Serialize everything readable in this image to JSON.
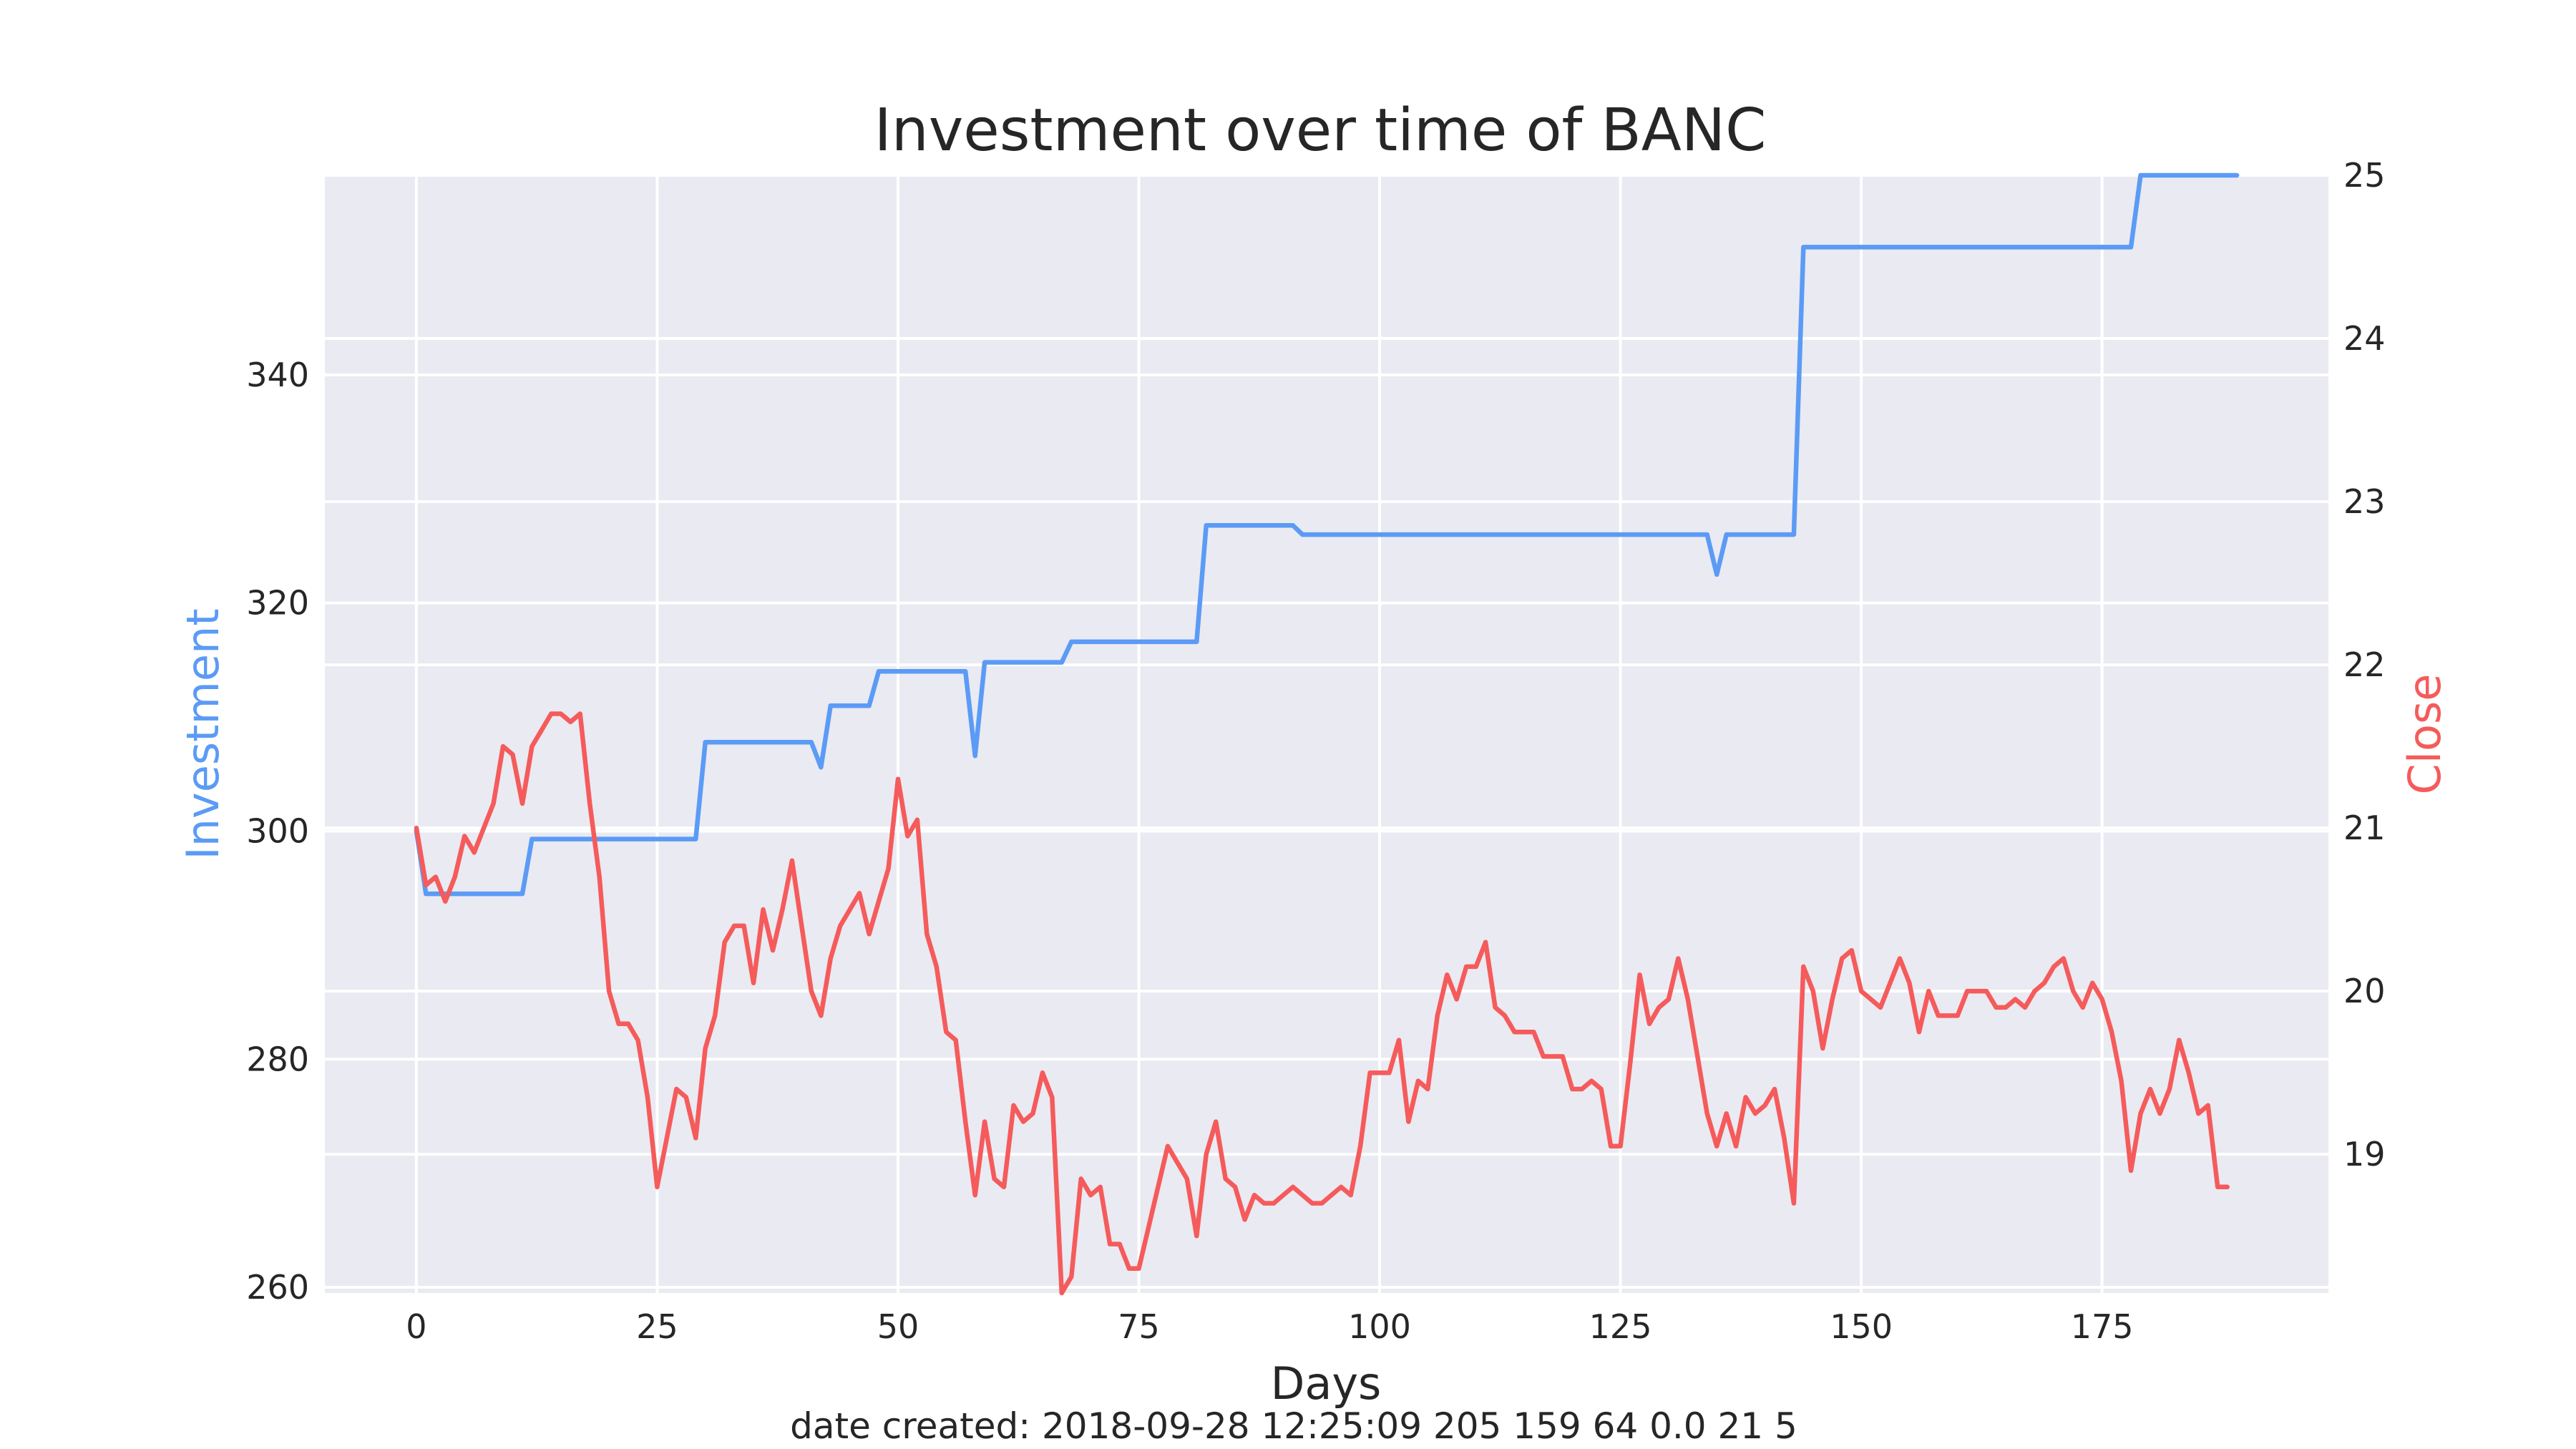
{
  "chart_data": {
    "type": "line",
    "title": "Investment over time of BANC",
    "xlabel": "Days",
    "ylabel_left": "Investment",
    "ylabel_right": "Close",
    "footer": "date created: 2018-09-28 12:25:09 205 159 64 0.0 21 5",
    "xlim": [
      -9.5,
      198.5
    ],
    "ylim_left": [
      259.5,
      357.5
    ],
    "ylim_right": [
      18.15,
      25.0
    ],
    "x_ticks": [
      0,
      25,
      50,
      75,
      100,
      125,
      150,
      175
    ],
    "x_tick_labels": [
      "0",
      "25",
      "50",
      "75",
      "100",
      "125",
      "150",
      "175"
    ],
    "y_left_ticks": [
      260,
      280,
      300,
      320,
      340
    ],
    "y_left_tick_labels": [
      "260",
      "280",
      "300",
      "320",
      "340"
    ],
    "y_right_ticks": [
      19,
      20,
      21,
      22,
      23,
      24,
      25
    ],
    "y_right_tick_labels": [
      "19",
      "20",
      "21",
      "22",
      "23",
      "24",
      "25"
    ],
    "grid": true,
    "colors": {
      "investment": "#5b9bf5",
      "close": "#f55b5b",
      "background": "#eaeaf2",
      "grid": "#ffffff"
    },
    "series": [
      {
        "name": "Investment",
        "axis": "left",
        "points": [
          [
            0,
            300
          ],
          [
            1,
            294.5
          ],
          [
            11,
            294.5
          ],
          [
            12,
            299.3
          ],
          [
            29,
            299.3
          ],
          [
            30,
            307.8
          ],
          [
            41,
            307.8
          ],
          [
            42,
            305.6
          ],
          [
            43,
            311
          ],
          [
            47,
            311
          ],
          [
            48,
            314
          ],
          [
            57,
            314
          ],
          [
            58,
            306.6
          ],
          [
            59,
            314.8
          ],
          [
            67,
            314.8
          ],
          [
            68,
            316.6
          ],
          [
            81,
            316.6
          ],
          [
            82,
            326.8
          ],
          [
            91,
            326.8
          ],
          [
            92,
            326
          ],
          [
            134,
            326
          ],
          [
            135,
            322.5
          ],
          [
            136,
            326
          ],
          [
            143,
            326
          ],
          [
            144,
            351.2
          ],
          [
            178,
            351.2
          ],
          [
            179,
            357.5
          ],
          [
            189,
            357.5
          ]
        ]
      },
      {
        "name": "Close",
        "axis": "right",
        "points": [
          [
            0,
            21.0
          ],
          [
            1,
            20.65
          ],
          [
            2,
            20.7
          ],
          [
            3,
            20.55
          ],
          [
            4,
            20.7
          ],
          [
            5,
            20.95
          ],
          [
            6,
            20.85
          ],
          [
            7,
            21.0
          ],
          [
            8,
            21.15
          ],
          [
            9,
            21.5
          ],
          [
            10,
            21.45
          ],
          [
            11,
            21.15
          ],
          [
            12,
            21.5
          ],
          [
            13,
            21.6
          ],
          [
            14,
            21.7
          ],
          [
            15,
            21.7
          ],
          [
            16,
            21.65
          ],
          [
            17,
            21.7
          ],
          [
            18,
            21.15
          ],
          [
            19,
            20.7
          ],
          [
            20,
            20.0
          ],
          [
            21,
            19.8
          ],
          [
            22,
            19.8
          ],
          [
            23,
            19.7
          ],
          [
            24,
            19.35
          ],
          [
            25,
            18.8
          ],
          [
            26,
            19.1
          ],
          [
            27,
            19.4
          ],
          [
            28,
            19.35
          ],
          [
            29,
            19.1
          ],
          [
            30,
            19.65
          ],
          [
            31,
            19.85
          ],
          [
            32,
            20.3
          ],
          [
            33,
            20.4
          ],
          [
            34,
            20.4
          ],
          [
            35,
            20.05
          ],
          [
            36,
            20.5
          ],
          [
            37,
            20.25
          ],
          [
            38,
            20.5
          ],
          [
            39,
            20.8
          ],
          [
            40,
            20.4
          ],
          [
            41,
            20.0
          ],
          [
            42,
            19.85
          ],
          [
            43,
            20.2
          ],
          [
            44,
            20.4
          ],
          [
            45,
            20.5
          ],
          [
            46,
            20.6
          ],
          [
            47,
            20.35
          ],
          [
            48,
            20.55
          ],
          [
            49,
            20.75
          ],
          [
            50,
            21.3
          ],
          [
            51,
            20.95
          ],
          [
            52,
            21.05
          ],
          [
            53,
            20.35
          ],
          [
            54,
            20.15
          ],
          [
            55,
            19.75
          ],
          [
            56,
            19.7
          ],
          [
            57,
            19.2
          ],
          [
            58,
            18.75
          ],
          [
            59,
            19.2
          ],
          [
            60,
            18.85
          ],
          [
            61,
            18.8
          ],
          [
            62,
            19.3
          ],
          [
            63,
            19.2
          ],
          [
            64,
            19.25
          ],
          [
            65,
            19.5
          ],
          [
            66,
            19.35
          ],
          [
            67,
            18.15
          ],
          [
            68,
            18.25
          ],
          [
            69,
            18.85
          ],
          [
            70,
            18.75
          ],
          [
            71,
            18.8
          ],
          [
            72,
            18.45
          ],
          [
            73,
            18.45
          ],
          [
            74,
            18.3
          ],
          [
            75,
            18.3
          ],
          [
            76,
            18.55
          ],
          [
            77,
            18.8
          ],
          [
            78,
            19.05
          ],
          [
            79,
            18.95
          ],
          [
            80,
            18.85
          ],
          [
            81,
            18.5
          ],
          [
            82,
            19.0
          ],
          [
            83,
            19.2
          ],
          [
            84,
            18.85
          ],
          [
            85,
            18.8
          ],
          [
            86,
            18.6
          ],
          [
            87,
            18.75
          ],
          [
            88,
            18.7
          ],
          [
            89,
            18.7
          ],
          [
            90,
            18.75
          ],
          [
            91,
            18.8
          ],
          [
            92,
            18.75
          ],
          [
            93,
            18.7
          ],
          [
            94,
            18.7
          ],
          [
            95,
            18.75
          ],
          [
            96,
            18.8
          ],
          [
            97,
            18.75
          ],
          [
            98,
            19.05
          ],
          [
            99,
            19.5
          ],
          [
            100,
            19.5
          ],
          [
            101,
            19.5
          ],
          [
            102,
            19.7
          ],
          [
            103,
            19.2
          ],
          [
            104,
            19.45
          ],
          [
            105,
            19.4
          ],
          [
            106,
            19.85
          ],
          [
            107,
            20.1
          ],
          [
            108,
            19.95
          ],
          [
            109,
            20.15
          ],
          [
            110,
            20.15
          ],
          [
            111,
            20.3
          ],
          [
            112,
            19.9
          ],
          [
            113,
            19.85
          ],
          [
            114,
            19.75
          ],
          [
            115,
            19.75
          ],
          [
            116,
            19.75
          ],
          [
            117,
            19.6
          ],
          [
            118,
            19.6
          ],
          [
            119,
            19.6
          ],
          [
            120,
            19.4
          ],
          [
            121,
            19.4
          ],
          [
            122,
            19.45
          ],
          [
            123,
            19.4
          ],
          [
            124,
            19.05
          ],
          [
            125,
            19.05
          ],
          [
            126,
            19.55
          ],
          [
            127,
            20.1
          ],
          [
            128,
            19.8
          ],
          [
            129,
            19.9
          ],
          [
            130,
            19.95
          ],
          [
            131,
            20.2
          ],
          [
            132,
            19.95
          ],
          [
            133,
            19.6
          ],
          [
            134,
            19.25
          ],
          [
            135,
            19.05
          ],
          [
            136,
            19.25
          ],
          [
            137,
            19.05
          ],
          [
            138,
            19.35
          ],
          [
            139,
            19.25
          ],
          [
            140,
            19.3
          ],
          [
            141,
            19.4
          ],
          [
            142,
            19.1
          ],
          [
            143,
            18.7
          ],
          [
            144,
            20.15
          ],
          [
            145,
            20.0
          ],
          [
            146,
            19.65
          ],
          [
            147,
            19.95
          ],
          [
            148,
            20.2
          ],
          [
            149,
            20.25
          ],
          [
            150,
            20.0
          ],
          [
            151,
            19.95
          ],
          [
            152,
            19.9
          ],
          [
            153,
            20.05
          ],
          [
            154,
            20.2
          ],
          [
            155,
            20.05
          ],
          [
            156,
            19.75
          ],
          [
            157,
            20.0
          ],
          [
            158,
            19.85
          ],
          [
            159,
            19.85
          ],
          [
            160,
            19.85
          ],
          [
            161,
            20.0
          ],
          [
            162,
            20.0
          ],
          [
            163,
            20.0
          ],
          [
            164,
            19.9
          ],
          [
            165,
            19.9
          ],
          [
            166,
            19.95
          ],
          [
            167,
            19.9
          ],
          [
            168,
            20.0
          ],
          [
            169,
            20.05
          ],
          [
            170,
            20.15
          ],
          [
            171,
            20.2
          ],
          [
            172,
            20.0
          ],
          [
            173,
            19.9
          ],
          [
            174,
            20.05
          ],
          [
            175,
            19.95
          ],
          [
            176,
            19.75
          ],
          [
            177,
            19.45
          ],
          [
            178,
            18.9
          ],
          [
            179,
            19.25
          ],
          [
            180,
            19.4
          ],
          [
            181,
            19.25
          ],
          [
            182,
            19.4
          ],
          [
            183,
            19.7
          ],
          [
            184,
            19.5
          ],
          [
            185,
            19.25
          ],
          [
            186,
            19.3
          ],
          [
            187,
            18.8
          ],
          [
            188,
            18.8
          ]
        ]
      }
    ]
  }
}
